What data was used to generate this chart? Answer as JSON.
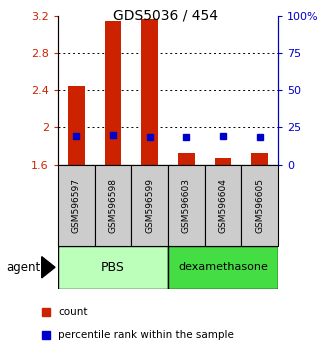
{
  "title": "GDS5036 / 454",
  "samples": [
    "GSM596597",
    "GSM596598",
    "GSM596599",
    "GSM596603",
    "GSM596604",
    "GSM596605"
  ],
  "groups": [
    "PBS",
    "PBS",
    "PBS",
    "dexamethasone",
    "dexamethasone",
    "dexamethasone"
  ],
  "count_values": [
    2.45,
    3.15,
    3.17,
    1.73,
    1.67,
    1.72
  ],
  "percentile_values": [
    19.5,
    20.0,
    18.5,
    18.5,
    19.0,
    18.5
  ],
  "ylim_left": [
    1.6,
    3.2
  ],
  "ylim_right": [
    0,
    100
  ],
  "yticks_left": [
    1.6,
    2.0,
    2.4,
    2.8,
    3.2
  ],
  "yticks_right": [
    0,
    25,
    50,
    75,
    100
  ],
  "ytick_labels_left": [
    "1.6",
    "2",
    "2.4",
    "2.8",
    "3.2"
  ],
  "ytick_labels_right": [
    "0",
    "25",
    "50",
    "75",
    "100%"
  ],
  "bar_color": "#cc2200",
  "dot_color": "#0000cc",
  "group_colors": {
    "PBS": "#bbffbb",
    "dexamethasone": "#44dd44"
  },
  "agent_label": "agent",
  "legend_count": "count",
  "legend_percentile": "percentile rank within the sample",
  "bar_width": 0.45,
  "base_value": 1.6,
  "fig_width": 3.31,
  "fig_height": 3.54,
  "dpi": 100
}
